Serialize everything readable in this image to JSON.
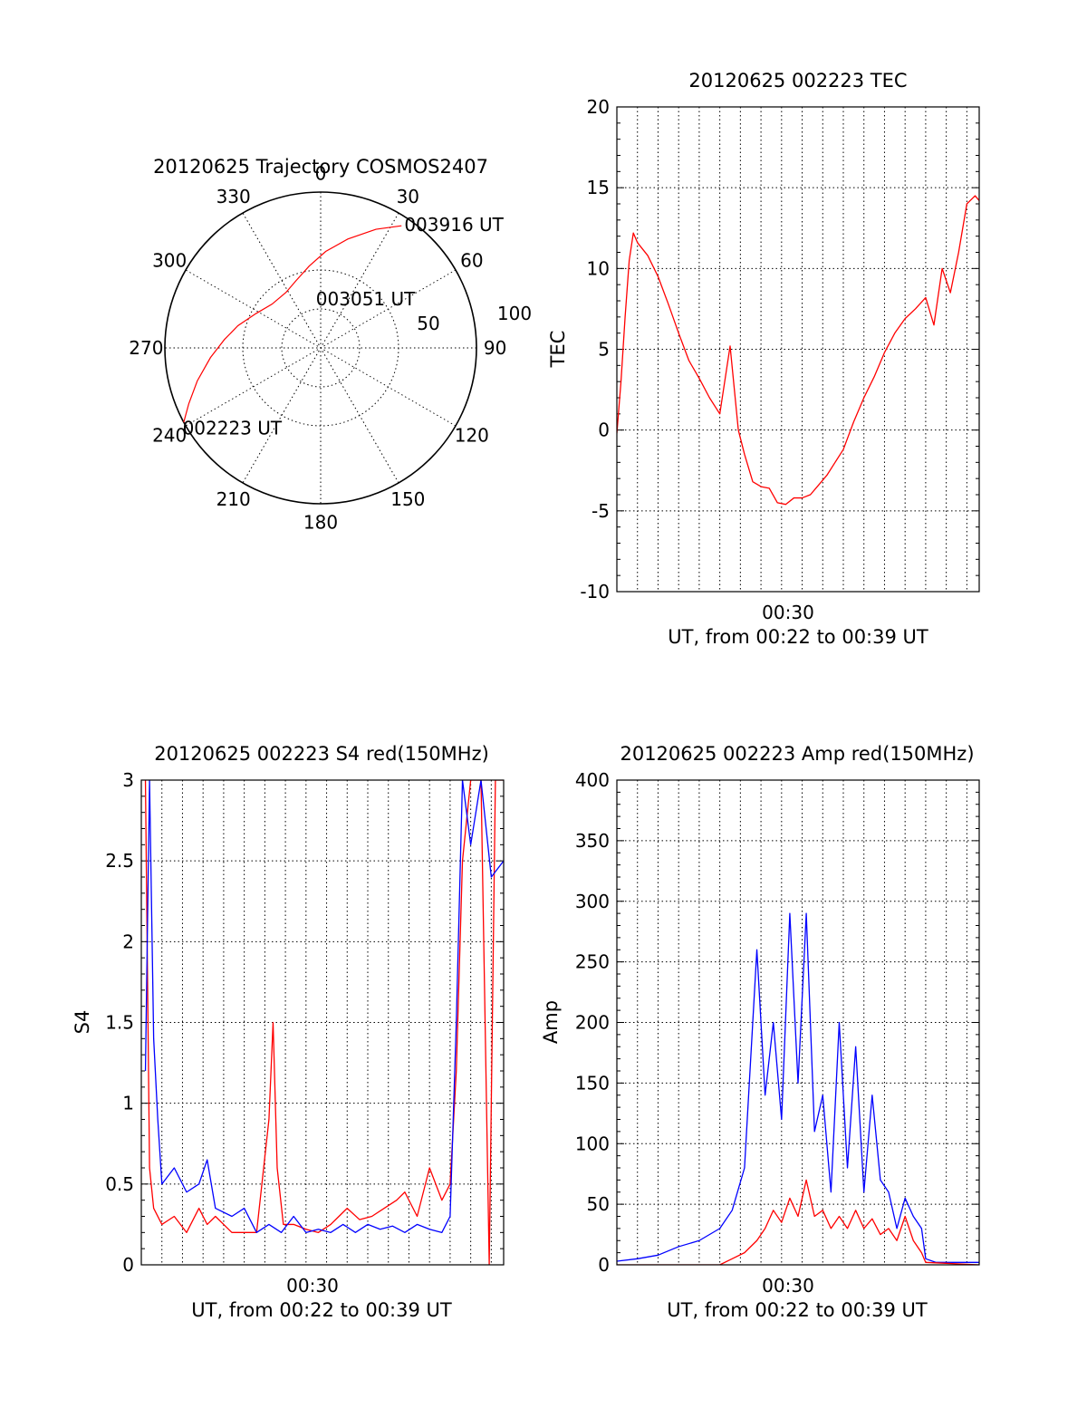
{
  "colors": {
    "red": "#ff0000",
    "blue": "#0000ff",
    "black": "#000000"
  },
  "chart_data": [
    {
      "type": "polar",
      "title": "20120625 Trajectory COSMOS2407",
      "azimuth_labels": [
        "0",
        "30",
        "60",
        "90",
        "120",
        "150",
        "180",
        "210",
        "240",
        "270",
        "300",
        "330"
      ],
      "radius_labels": [
        "50",
        "100"
      ],
      "trajectory": {
        "azimuth": [
          241.5,
          247,
          255,
          265,
          275,
          285,
          298,
          312,
          328,
          340,
          352,
          3,
          14,
          25,
          33.5
        ],
        "zenith": [
          100,
          92,
          82,
          71,
          62,
          55,
          47,
          42,
          42,
          46,
          53,
          62,
          72,
          84,
          94
        ]
      },
      "annotations": [
        {
          "text": "003916 UT",
          "azimuth": 34,
          "zenith": 96
        },
        {
          "text": "003051 UT",
          "azimuth": 5,
          "zenith": 32
        },
        {
          "text": "002223 UT",
          "azimuth": 241,
          "zenith": 100
        }
      ]
    },
    {
      "type": "line",
      "title": "20120625 002223 TEC",
      "ylabel": "TEC",
      "xlabel": "UT, from 00:22 to 00:39 UT",
      "xtick_label": "00:30",
      "ylim": [
        -10,
        20
      ],
      "yticks": [
        "20",
        "15",
        "10",
        "5",
        "0",
        "-5",
        "-10"
      ],
      "series": [
        {
          "color": "red",
          "x": [
            0,
            0.2,
            0.4,
            0.6,
            0.8,
            1.0,
            1.5,
            2.0,
            2.5,
            3.0,
            3.5,
            4.0,
            4.5,
            5.0,
            5.5,
            5.9,
            6.2,
            6.6,
            7.0,
            7.4,
            7.8,
            8.2,
            8.6,
            9.0,
            9.4,
            9.8,
            10.2,
            10.6,
            11.0,
            11.5,
            12.0,
            12.5,
            13.0,
            13.5,
            14.0,
            14.5,
            15.0,
            15.4,
            15.8,
            16.2,
            16.6,
            17.0,
            17.4,
            17.6
          ],
          "y": [
            -0.2,
            3,
            7,
            10.5,
            12.2,
            11.6,
            10.8,
            9.5,
            7.8,
            6,
            4.3,
            3.2,
            2,
            1,
            5.2,
            0,
            -1.5,
            -3.2,
            -3.5,
            -3.6,
            -4.5,
            -4.6,
            -4.2,
            -4.2,
            -4.0,
            -3.4,
            -2.8,
            -2.0,
            -1.2,
            0.5,
            2,
            3.3,
            4.8,
            6,
            6.9,
            7.5,
            8.2,
            6.5,
            10,
            8.5,
            11,
            14,
            14.5,
            14.2
          ]
        }
      ]
    },
    {
      "type": "line",
      "title": "20120625 002223 S4 red(150MHz)",
      "ylabel": "S4",
      "xlabel": "UT, from 00:22 to 00:39 UT",
      "xtick_label": "00:30",
      "ylim": [
        0,
        3
      ],
      "yticks": [
        "3",
        "2.5",
        "2",
        "1.5",
        "1",
        "0.5",
        "0"
      ],
      "series": [
        {
          "color": "red",
          "x": [
            0.2,
            0.4,
            0.6,
            1.0,
            1.6,
            2.2,
            2.8,
            3.2,
            3.6,
            4.4,
            5.0,
            5.6,
            6.2,
            6.4,
            6.6,
            6.9,
            7.4,
            8.0,
            8.6,
            9.2,
            9.6,
            10.0,
            10.6,
            11.2,
            11.8,
            12.4,
            12.8,
            13.4,
            14.0,
            14.6,
            15.0,
            15.3,
            15.6,
            16.0,
            16.5,
            16.9,
            17.2,
            17.6
          ],
          "y": [
            3,
            0.6,
            0.35,
            0.25,
            0.3,
            0.2,
            0.35,
            0.25,
            0.3,
            0.2,
            0.2,
            0.2,
            0.9,
            1.5,
            0.6,
            0.25,
            0.25,
            0.22,
            0.2,
            0.25,
            0.3,
            0.35,
            0.28,
            0.3,
            0.35,
            0.4,
            0.45,
            0.3,
            0.6,
            0.4,
            0.5,
            1.2,
            2.5,
            3,
            3,
            0,
            3,
            3
          ]
        },
        {
          "color": "blue",
          "x": [
            0.2,
            0.4,
            0.6,
            0.8,
            1.0,
            1.6,
            2.2,
            2.8,
            3.2,
            3.6,
            4.4,
            5.0,
            5.6,
            6.2,
            6.8,
            7.4,
            8.0,
            8.6,
            9.2,
            9.8,
            10.4,
            11.0,
            11.6,
            12.2,
            12.8,
            13.4,
            14.0,
            14.6,
            15.0,
            15.3,
            15.6,
            16.0,
            16.5,
            17.0,
            17.6
          ],
          "y": [
            1.2,
            3,
            1.4,
            0.9,
            0.5,
            0.6,
            0.45,
            0.5,
            0.65,
            0.35,
            0.3,
            0.35,
            0.2,
            0.25,
            0.2,
            0.3,
            0.2,
            0.22,
            0.2,
            0.25,
            0.2,
            0.25,
            0.22,
            0.24,
            0.2,
            0.25,
            0.22,
            0.2,
            0.3,
            1.5,
            3,
            2.6,
            3,
            2.4,
            2.5
          ]
        }
      ]
    },
    {
      "type": "line",
      "title": "20120625 002223 Amp red(150MHz)",
      "ylabel": "Amp",
      "xlabel": "UT, from 00:22 to 00:39 UT",
      "xtick_label": "00:30",
      "ylim": [
        0,
        400
      ],
      "yticks": [
        "400",
        "350",
        "300",
        "250",
        "200",
        "150",
        "100",
        "50",
        "0"
      ],
      "series": [
        {
          "color": "blue",
          "x": [
            0,
            1,
            2,
            3,
            4,
            5,
            5.6,
            6.2,
            6.8,
            7.2,
            7.6,
            8.0,
            8.4,
            8.8,
            9.2,
            9.6,
            10.0,
            10.4,
            10.8,
            11.2,
            11.6,
            12.0,
            12.4,
            12.8,
            13.2,
            13.6,
            14.0,
            14.4,
            14.8,
            15.0,
            15.5,
            16.0,
            17.6
          ],
          "y": [
            3,
            5,
            8,
            15,
            20,
            30,
            45,
            80,
            260,
            140,
            200,
            120,
            290,
            150,
            290,
            110,
            140,
            60,
            200,
            80,
            180,
            60,
            140,
            70,
            60,
            30,
            55,
            40,
            30,
            5,
            2,
            2,
            2
          ]
        },
        {
          "color": "red",
          "x": [
            0,
            5,
            5.6,
            6.2,
            6.8,
            7.2,
            7.6,
            8.0,
            8.4,
            8.8,
            9.2,
            9.6,
            10.0,
            10.4,
            10.8,
            11.2,
            11.6,
            12.0,
            12.4,
            12.8,
            13.2,
            13.6,
            14.0,
            14.4,
            14.8,
            15.0,
            17.6
          ],
          "y": [
            0,
            0,
            5,
            10,
            20,
            30,
            45,
            35,
            55,
            40,
            70,
            40,
            45,
            30,
            40,
            30,
            45,
            30,
            38,
            25,
            30,
            20,
            40,
            20,
            10,
            2,
            0
          ]
        }
      ]
    }
  ]
}
